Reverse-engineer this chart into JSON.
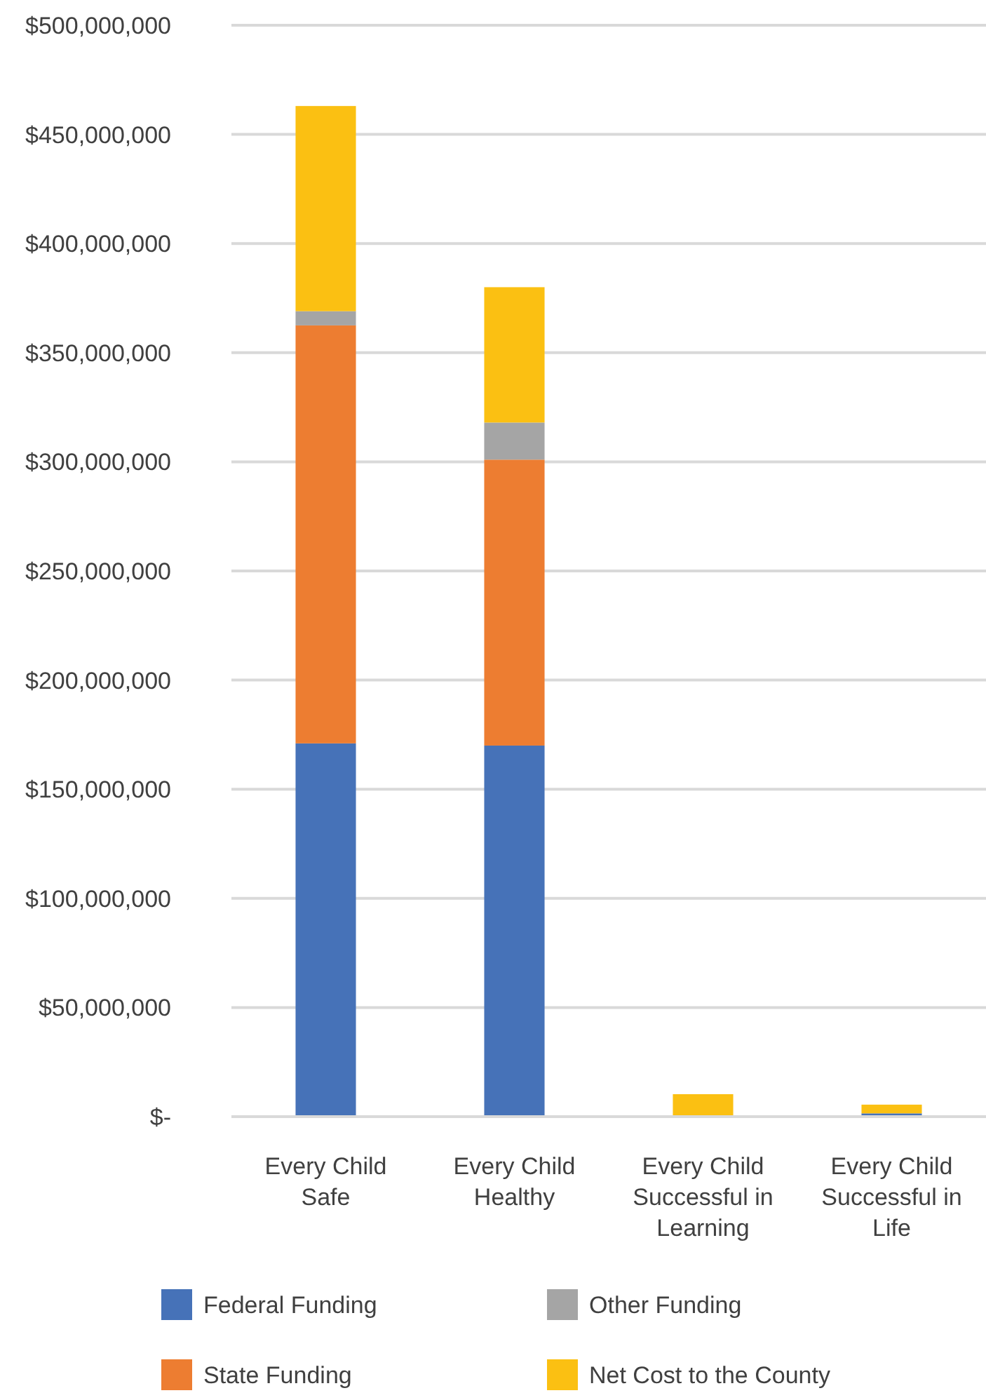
{
  "chart_data": {
    "type": "bar",
    "stacked": true,
    "categories": [
      "Every Child Safe",
      "Every Child Healthy",
      "Every Child Successful in Learning",
      "Every Child Successful in Life"
    ],
    "series": [
      {
        "name": "Federal Funding",
        "color": "#4672b8",
        "values": [
          171000000,
          170000000,
          0,
          1500000
        ]
      },
      {
        "name": "State Funding",
        "color": "#ed7d31",
        "values": [
          191500000,
          131000000,
          0,
          0
        ]
      },
      {
        "name": "Other Funding",
        "color": "#a5a5a5",
        "values": [
          6500000,
          17000000,
          0,
          0
        ]
      },
      {
        "name": "Net Cost to the County",
        "color": "#fbc012",
        "values": [
          94000000,
          62000000,
          10300000,
          4000000
        ]
      }
    ],
    "ylim": [
      0,
      500000000
    ],
    "yticks": [
      {
        "value": 0,
        "label": "$-"
      },
      {
        "value": 50000000,
        "label": "$50,000,000"
      },
      {
        "value": 100000000,
        "label": "$100,000,000"
      },
      {
        "value": 150000000,
        "label": "$150,000,000"
      },
      {
        "value": 200000000,
        "label": "$200,000,000"
      },
      {
        "value": 250000000,
        "label": "$250,000,000"
      },
      {
        "value": 300000000,
        "label": "$300,000,000"
      },
      {
        "value": 350000000,
        "label": "$350,000,000"
      },
      {
        "value": 400000000,
        "label": "$400,000,000"
      },
      {
        "value": 450000000,
        "label": "$450,000,000"
      },
      {
        "value": 500000000,
        "label": "$500,000,000"
      }
    ],
    "grid": "y",
    "legend": "bottom"
  }
}
